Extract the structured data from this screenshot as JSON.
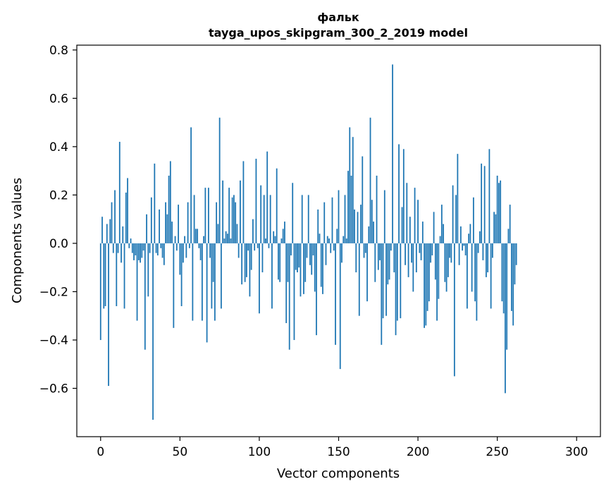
{
  "chart_data": {
    "type": "bar",
    "title": "фальк",
    "subtitle": "tayga_upos_skipgram_300_2_2019 model",
    "xlabel": "Vector components",
    "ylabel": "Components values",
    "xlim": [
      -15,
      315
    ],
    "ylim": [
      -0.8,
      0.82
    ],
    "xticks": [
      0,
      50,
      100,
      150,
      200,
      250,
      300
    ],
    "xtick_labels": [
      "0",
      "50",
      "100",
      "150",
      "200",
      "250",
      "300"
    ],
    "yticks": [
      -0.6,
      -0.4,
      -0.2,
      0.0,
      0.2,
      0.4,
      0.6,
      0.8
    ],
    "ytick_labels": [
      "−0.6",
      "−0.4",
      "−0.2",
      "0.0",
      "0.2",
      "0.4",
      "0.6",
      "0.8"
    ],
    "grid": false,
    "bar_color": "#1f77b4",
    "series": [
      {
        "values": [
          -0.4,
          0.11,
          -0.27,
          -0.26,
          0.08,
          -0.59,
          0.1,
          0.17,
          -0.04,
          0.22,
          -0.26,
          -0.04,
          0.42,
          -0.08,
          0.07,
          -0.27,
          0.21,
          0.27,
          -0.02,
          0.02,
          -0.04,
          -0.07,
          -0.05,
          -0.32,
          -0.07,
          -0.08,
          -0.06,
          -0.03,
          -0.44,
          0.12,
          -0.22,
          -0.04,
          0.19,
          -0.73,
          0.33,
          -0.04,
          -0.05,
          0.14,
          -0.02,
          -0.06,
          -0.09,
          0.17,
          0.12,
          0.28,
          0.34,
          0.09,
          -0.35,
          0.03,
          -0.03,
          0.16,
          -0.13,
          -0.26,
          -0.08,
          0.03,
          -0.06,
          0.17,
          -0.02,
          0.48,
          -0.32,
          0.2,
          0.06,
          0.06,
          -0.02,
          -0.07,
          -0.32,
          0.03,
          0.23,
          -0.41,
          0.23,
          -0.06,
          -0.27,
          -0.16,
          -0.32,
          0.17,
          0.08,
          0.52,
          -0.27,
          0.26,
          0.02,
          0.05,
          0.04,
          0.23,
          0.02,
          0.19,
          0.2,
          0.17,
          0.08,
          -0.06,
          0.26,
          -0.17,
          0.34,
          -0.16,
          -0.14,
          -0.03,
          -0.22,
          -0.11,
          0.1,
          -0.03,
          0.35,
          -0.02,
          -0.29,
          0.24,
          -0.12,
          0.2,
          0.02,
          0.38,
          -0.02,
          0.2,
          -0.27,
          0.05,
          0.03,
          0.31,
          -0.15,
          -0.16,
          0.02,
          0.06,
          0.09,
          -0.33,
          -0.16,
          -0.44,
          -0.05,
          0.25,
          -0.4,
          -0.11,
          -0.12,
          -0.1,
          -0.22,
          0.2,
          -0.21,
          -0.16,
          -0.06,
          0.2,
          -0.09,
          -0.13,
          -0.05,
          -0.2,
          -0.38,
          0.14,
          0.04,
          -0.18,
          -0.21,
          0.17,
          -0.09,
          0.03,
          0.02,
          -0.04,
          0.19,
          -0.03,
          -0.42,
          0.06,
          0.22,
          -0.52,
          -0.08,
          0.03,
          0.2,
          0.02,
          0.3,
          0.48,
          0.28,
          0.44,
          0.14,
          -0.12,
          0.13,
          -0.3,
          0.16,
          0.36,
          -0.06,
          -0.04,
          -0.24,
          0.07,
          0.52,
          0.18,
          0.09,
          -0.16,
          0.28,
          -0.11,
          -0.07,
          -0.42,
          -0.31,
          0.22,
          -0.3,
          -0.17,
          -0.15,
          -0.03,
          0.74,
          -0.12,
          -0.38,
          -0.32,
          0.41,
          -0.31,
          0.15,
          0.39,
          -0.09,
          0.25,
          -0.14,
          0.11,
          -0.08,
          -0.2,
          0.23,
          -0.12,
          0.18,
          -0.04,
          -0.07,
          0.09,
          -0.35,
          -0.34,
          -0.28,
          -0.24,
          -0.08,
          -0.05,
          0.13,
          -0.15,
          -0.32,
          -0.23,
          0.03,
          0.16,
          0.08,
          -0.16,
          -0.2,
          -0.14,
          -0.06,
          -0.08,
          0.24,
          -0.55,
          0.2,
          0.37,
          -0.09,
          0.07,
          -0.03,
          -0.01,
          -0.05,
          -0.27,
          0.04,
          0.08,
          -0.2,
          0.19,
          -0.24,
          -0.32,
          -0.04,
          0.05,
          0.33,
          -0.07,
          0.32,
          -0.14,
          -0.12,
          0.39,
          -0.27,
          -0.06,
          0.13,
          0.12,
          0.28,
          0.25,
          0.26,
          -0.24,
          -0.29,
          -0.62,
          -0.44,
          0.06,
          0.16,
          -0.28,
          -0.34,
          -0.17,
          -0.09
        ]
      }
    ]
  }
}
